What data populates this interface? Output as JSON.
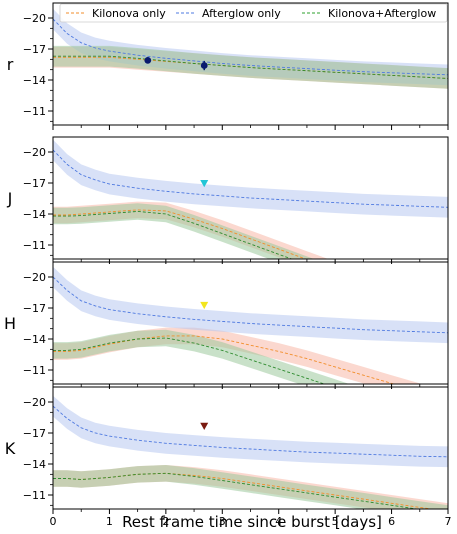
{
  "chart_data": {
    "type": "line",
    "xlabel": "Rest frame time since burst [days]",
    "xlim": [
      0,
      7
    ],
    "x_ticks": [
      0,
      1,
      2,
      3,
      4,
      5,
      6,
      7
    ],
    "y_ticks": [
      -20,
      -17,
      -14,
      -11
    ],
    "ylim": [
      -10,
      -20
    ],
    "legend": {
      "placement": "top",
      "entries": [
        {
          "name": "Kilonova only",
          "color": "#f28e2b"
        },
        {
          "name": "Afterglow only",
          "color": "#4e79e0"
        },
        {
          "name": "Kilonova+Afterglow",
          "color": "#2ca02c"
        }
      ]
    },
    "colors": {
      "kilonova_line": "#f28e2b",
      "kilonova_band": "#f8b8a8",
      "afterglow_line": "#4e79e0",
      "afterglow_band": "#b8c8f0",
      "combined_line": "#2e8b2e",
      "combined_band": "#9cc89c"
    },
    "panels": [
      {
        "band": "r",
        "x": [
          0,
          0.25,
          0.5,
          0.75,
          1,
          1.5,
          2,
          2.5,
          3,
          3.5,
          4,
          4.5,
          5,
          5.5,
          6,
          6.5,
          7
        ],
        "afterglow": [
          -19.9,
          -18.5,
          -17.6,
          -17.1,
          -16.8,
          -16.4,
          -16.1,
          -15.85,
          -15.6,
          -15.4,
          -15.25,
          -15.1,
          -14.95,
          -14.8,
          -14.7,
          -14.6,
          -14.5
        ],
        "afterglow_err": 1.0,
        "kilonova": [
          -16.2,
          -16.2,
          -16.2,
          -16.2,
          -16.2,
          -16.0,
          -15.8,
          -15.6,
          -15.4,
          -15.2,
          -15.05,
          -14.9,
          -14.75,
          -14.6,
          -14.45,
          -14.3,
          -14.15
        ],
        "kilonova_err": 1.0,
        "combined": [
          -16.3,
          -16.3,
          -16.3,
          -16.3,
          -16.3,
          -16.1,
          -15.85,
          -15.6,
          -15.4,
          -15.2,
          -15.05,
          -14.9,
          -14.75,
          -14.6,
          -14.45,
          -14.3,
          -14.15
        ],
        "combined_err": 1.0,
        "observations": [
          {
            "x": 1.68,
            "y": -15.9,
            "yerr": 0.3,
            "color": "#0a1a6e",
            "type": "point"
          },
          {
            "x": 2.68,
            "y": -15.4,
            "yerr": 0.45,
            "color": "#0a1a6e",
            "type": "point"
          }
        ]
      },
      {
        "band": "J",
        "x": [
          0,
          0.25,
          0.5,
          0.75,
          1,
          1.5,
          2,
          2.5,
          3,
          3.5,
          4,
          4.5,
          5,
          5.5,
          6,
          6.5,
          7
        ],
        "afterglow": [
          -20.2,
          -18.8,
          -17.8,
          -17.3,
          -16.9,
          -16.5,
          -16.2,
          -15.95,
          -15.75,
          -15.55,
          -15.4,
          -15.25,
          -15.1,
          -14.95,
          -14.85,
          -14.75,
          -14.65
        ],
        "afterglow_err": 1.0,
        "kilonova": [
          -13.9,
          -13.9,
          -14.0,
          -14.1,
          -14.2,
          -14.4,
          -14.3,
          -13.5,
          -12.6,
          -11.6,
          -10.6,
          -9.6,
          -8.6,
          -7.6,
          -6.6,
          -5.6,
          -4.6
        ],
        "kilonova_err": 0.8,
        "combined": [
          -13.8,
          -13.8,
          -13.85,
          -13.95,
          -14.05,
          -14.25,
          -14.0,
          -13.1,
          -12.1,
          -11.1,
          -10.1,
          -9.1,
          -8.1,
          -7.1,
          -6.1,
          -5.1,
          -4.1
        ],
        "combined_err": 0.8,
        "observations": [
          {
            "x": 2.68,
            "y": -16.9,
            "color": "#22c5d6",
            "type": "upper_limit"
          }
        ]
      },
      {
        "band": "H",
        "x": [
          0,
          0.25,
          0.5,
          0.75,
          1,
          1.5,
          2,
          2.5,
          3,
          3.5,
          4,
          4.5,
          5,
          5.5,
          6,
          6.5,
          7
        ],
        "afterglow": [
          -20.0,
          -18.7,
          -17.7,
          -17.2,
          -16.85,
          -16.45,
          -16.15,
          -15.9,
          -15.7,
          -15.5,
          -15.35,
          -15.2,
          -15.05,
          -14.9,
          -14.8,
          -14.7,
          -14.6
        ],
        "afterglow_err": 1.0,
        "kilonova": [
          -12.8,
          -12.8,
          -12.9,
          -13.2,
          -13.5,
          -14.0,
          -14.3,
          -14.3,
          -14.0,
          -13.4,
          -12.8,
          -12.1,
          -11.3,
          -10.5,
          -9.7,
          -8.9,
          -8.1
        ],
        "kilonova_err": 0.8,
        "combined": [
          -12.9,
          -12.9,
          -13.0,
          -13.3,
          -13.6,
          -14.0,
          -14.1,
          -13.6,
          -12.9,
          -12.0,
          -11.1,
          -10.2,
          -9.3,
          -8.4,
          -7.5,
          -6.6,
          -5.7
        ],
        "combined_err": 0.8,
        "observations": [
          {
            "x": 2.68,
            "y": -17.2,
            "color": "#f2e51d",
            "type": "upper_limit"
          }
        ]
      },
      {
        "band": "K",
        "x": [
          0,
          0.25,
          0.5,
          0.75,
          1,
          1.5,
          2,
          2.5,
          3,
          3.5,
          4,
          4.5,
          5,
          5.5,
          6,
          6.5,
          7
        ],
        "afterglow": [
          -19.6,
          -18.4,
          -17.5,
          -17.0,
          -16.7,
          -16.3,
          -16.0,
          -15.8,
          -15.6,
          -15.45,
          -15.3,
          -15.15,
          -15.05,
          -14.95,
          -14.85,
          -14.75,
          -14.7
        ],
        "afterglow_err": 1.0,
        "kilonova": [
          -12.6,
          -12.6,
          -12.5,
          -12.6,
          -12.7,
          -13.0,
          -13.1,
          -12.9,
          -12.6,
          -12.2,
          -11.8,
          -11.4,
          -11.0,
          -10.6,
          -10.2,
          -9.8,
          -9.4
        ],
        "kilonova_err": 0.8,
        "combined": [
          -12.6,
          -12.6,
          -12.5,
          -12.6,
          -12.7,
          -13.0,
          -13.1,
          -12.8,
          -12.4,
          -12.0,
          -11.6,
          -11.2,
          -10.8,
          -10.4,
          -10.0,
          -9.6,
          -9.2
        ],
        "combined_err": 0.8,
        "observations": [
          {
            "x": 2.68,
            "y": -17.6,
            "color": "#7a1a10",
            "type": "upper_limit"
          }
        ]
      }
    ]
  }
}
